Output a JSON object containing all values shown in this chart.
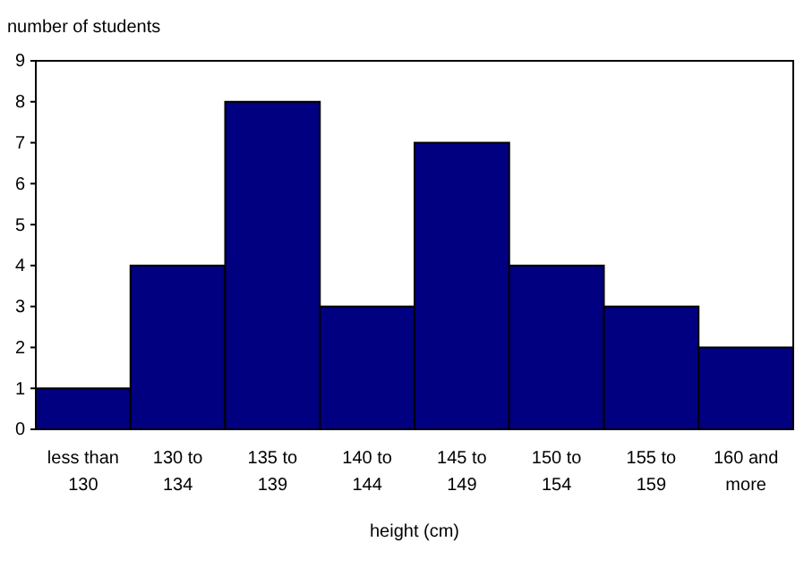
{
  "chart_data": {
    "type": "bar",
    "ylabel": "number of students",
    "xlabel": "height (cm)",
    "categories": [
      "less than 130",
      "130 to 134",
      "135 to 139",
      "140 to 144",
      "145 to 149",
      "150 to 154",
      "155 to 159",
      "160 and more"
    ],
    "values": [
      1,
      4,
      8,
      3,
      7,
      4,
      3,
      2
    ],
    "color": "#000080",
    "ylim": [
      0,
      9
    ],
    "yticks": [
      0,
      1,
      2,
      3,
      4,
      5,
      6,
      7,
      8,
      9
    ],
    "grid": false
  }
}
